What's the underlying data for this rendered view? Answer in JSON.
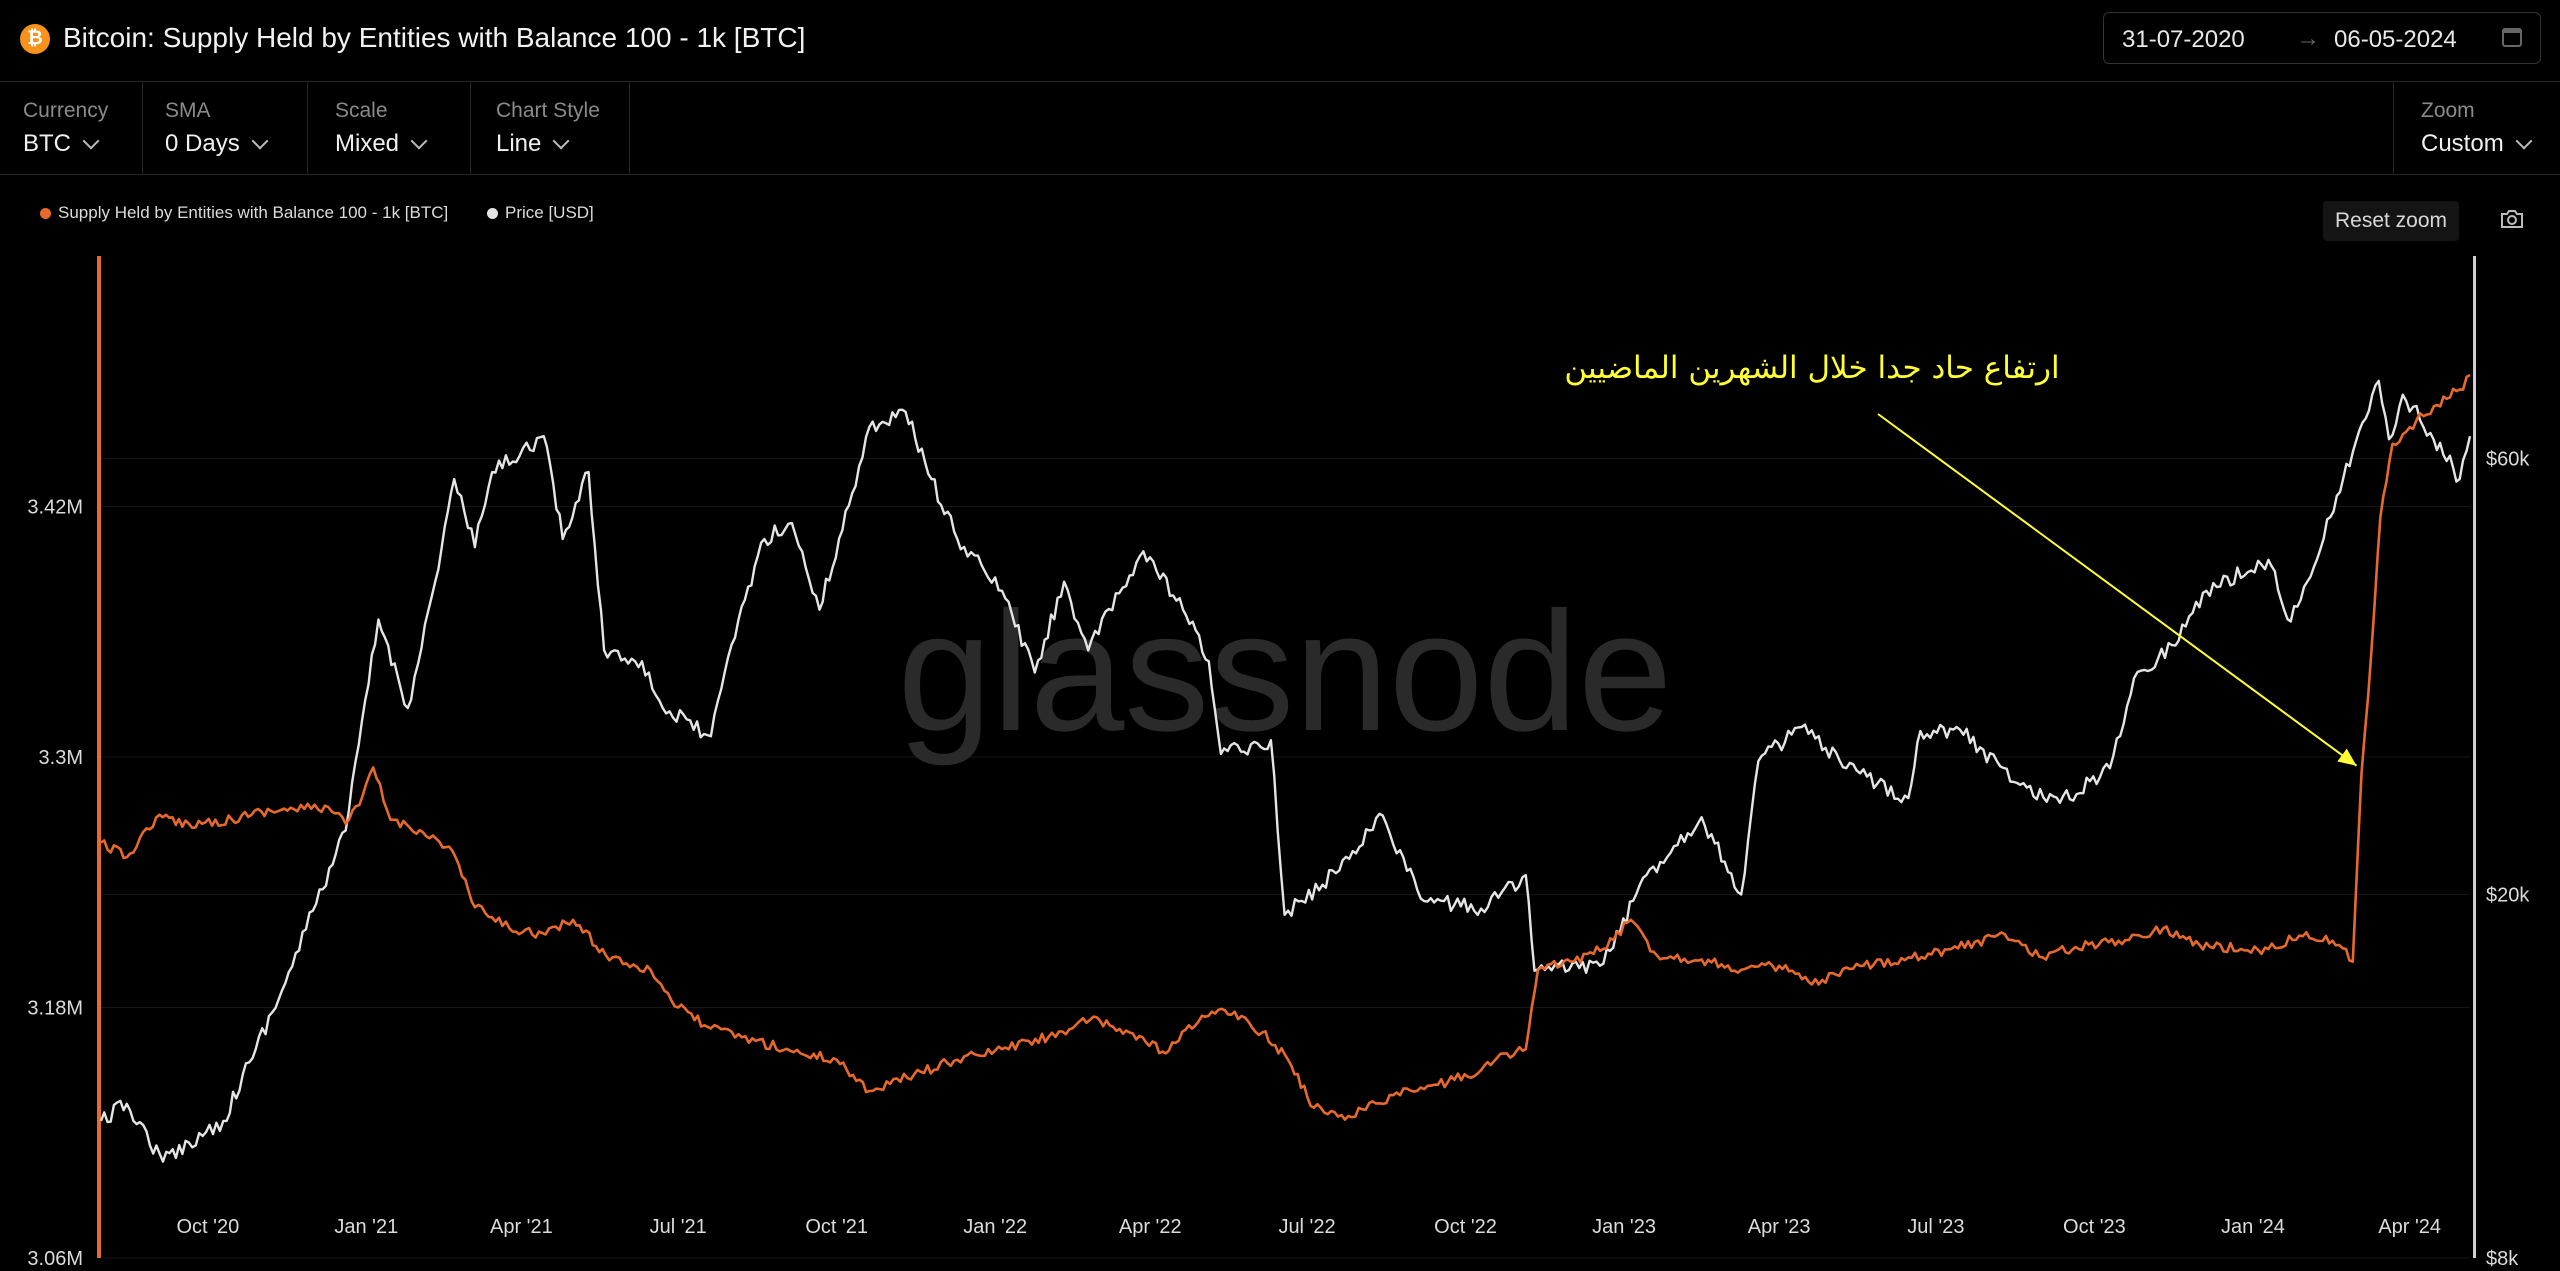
{
  "header": {
    "title": "Bitcoin: Supply Held by Entities with Balance 100 - 1k [BTC]",
    "date_start": "31-07-2020",
    "date_arrow": "→",
    "date_end": "06-05-2024"
  },
  "controls": {
    "currency": {
      "label": "Currency",
      "value": "BTC"
    },
    "sma": {
      "label": "SMA",
      "value": "0 Days"
    },
    "scale": {
      "label": "Scale",
      "value": "Mixed"
    },
    "chart_style": {
      "label": "Chart Style",
      "value": "Line"
    },
    "zoom": {
      "label": "Zoom",
      "value": "Custom"
    }
  },
  "toolbar": {
    "reset_zoom": "Reset zoom"
  },
  "watermark": "glassnode",
  "colors": {
    "supply": "#e8692c",
    "price": "#e5e5e5",
    "annotation": "#ffff33",
    "background": "#000000"
  },
  "chart_data": {
    "type": "line",
    "title": "Bitcoin: Supply Held by Entities with Balance 100 - 1k [BTC]",
    "x_ticks": [
      "Oct '20",
      "Jan '21",
      "Apr '21",
      "Jul '21",
      "Oct '21",
      "Jan '22",
      "Apr '22",
      "Jul '22",
      "Oct '22",
      "Jan '23",
      "Apr '23",
      "Jul '23",
      "Oct '23",
      "Jan '24",
      "Apr '24"
    ],
    "x_tick_dates": [
      "2020-10-01",
      "2021-01-01",
      "2021-04-01",
      "2021-07-01",
      "2021-10-01",
      "2022-01-01",
      "2022-04-01",
      "2022-07-01",
      "2022-10-01",
      "2023-01-01",
      "2023-04-01",
      "2023-07-01",
      "2023-10-01",
      "2024-01-01",
      "2024-04-01"
    ],
    "x_range": [
      "2020-07-31",
      "2024-05-06"
    ],
    "y_left": {
      "ticks": [
        "3.06M",
        "3.18M",
        "3.3M",
        "3.42M"
      ],
      "tick_values": [
        3.06,
        3.18,
        3.3,
        3.42
      ],
      "range": [
        3.06,
        3.54
      ],
      "unit": "M BTC"
    },
    "y_right": {
      "ticks": [
        "$8k",
        "$20k",
        "$60k"
      ],
      "tick_values": [
        8000,
        20000,
        60000
      ],
      "scale": "log",
      "range": [
        8000,
        100000
      ]
    },
    "legend": {
      "position": "top-left"
    },
    "series": [
      {
        "name": "Supply Held by Entities with Balance 100 - 1k [BTC]",
        "axis": "left",
        "points": [
          [
            "2020-07-31",
            3.259
          ],
          [
            "2020-08-15",
            3.252
          ],
          [
            "2020-09-01",
            3.271
          ],
          [
            "2020-09-20",
            3.268
          ],
          [
            "2020-10-15",
            3.27
          ],
          [
            "2020-11-01",
            3.274
          ],
          [
            "2020-11-20",
            3.275
          ],
          [
            "2020-12-10",
            3.276
          ],
          [
            "2020-12-20",
            3.268
          ],
          [
            "2020-12-28",
            3.277
          ],
          [
            "2021-01-05",
            3.295
          ],
          [
            "2021-01-15",
            3.27
          ],
          [
            "2021-02-01",
            3.265
          ],
          [
            "2021-02-20",
            3.255
          ],
          [
            "2021-03-05",
            3.228
          ],
          [
            "2021-03-25",
            3.218
          ],
          [
            "2021-04-15",
            3.215
          ],
          [
            "2021-05-01",
            3.222
          ],
          [
            "2021-05-20",
            3.205
          ],
          [
            "2021-06-15",
            3.198
          ],
          [
            "2021-07-01",
            3.18
          ],
          [
            "2021-07-20",
            3.17
          ],
          [
            "2021-08-15",
            3.164
          ],
          [
            "2021-09-10",
            3.158
          ],
          [
            "2021-10-01",
            3.155
          ],
          [
            "2021-10-20",
            3.14
          ],
          [
            "2021-11-15",
            3.148
          ],
          [
            "2021-12-10",
            3.155
          ],
          [
            "2022-01-05",
            3.16
          ],
          [
            "2022-02-01",
            3.166
          ],
          [
            "2022-02-25",
            3.174
          ],
          [
            "2022-03-20",
            3.168
          ],
          [
            "2022-04-10",
            3.158
          ],
          [
            "2022-05-01",
            3.176
          ],
          [
            "2022-05-20",
            3.178
          ],
          [
            "2022-06-05",
            3.168
          ],
          [
            "2022-06-20",
            3.155
          ],
          [
            "2022-07-05",
            3.132
          ],
          [
            "2022-07-25",
            3.128
          ],
          [
            "2022-08-20",
            3.138
          ],
          [
            "2022-09-15",
            3.143
          ],
          [
            "2022-10-10",
            3.15
          ],
          [
            "2022-10-25",
            3.158
          ],
          [
            "2022-11-05",
            3.16
          ],
          [
            "2022-11-12",
            3.198
          ],
          [
            "2022-12-01",
            3.202
          ],
          [
            "2022-12-20",
            3.208
          ],
          [
            "2023-01-05",
            3.222
          ],
          [
            "2023-01-20",
            3.205
          ],
          [
            "2023-02-15",
            3.203
          ],
          [
            "2023-03-10",
            3.198
          ],
          [
            "2023-04-01",
            3.2
          ],
          [
            "2023-04-20",
            3.191
          ],
          [
            "2023-05-20",
            3.2
          ],
          [
            "2023-06-15",
            3.204
          ],
          [
            "2023-07-10",
            3.208
          ],
          [
            "2023-08-10",
            3.215
          ],
          [
            "2023-09-01",
            3.204
          ],
          [
            "2023-09-20",
            3.209
          ],
          [
            "2023-10-15",
            3.212
          ],
          [
            "2023-11-10",
            3.218
          ],
          [
            "2023-12-01",
            3.21
          ],
          [
            "2023-12-25",
            3.208
          ],
          [
            "2024-01-10",
            3.208
          ],
          [
            "2024-02-01",
            3.216
          ],
          [
            "2024-02-20",
            3.21
          ],
          [
            "2024-02-28",
            3.202
          ],
          [
            "2024-03-04",
            3.292
          ],
          [
            "2024-03-08",
            3.33
          ],
          [
            "2024-03-15",
            3.415
          ],
          [
            "2024-03-22",
            3.45
          ],
          [
            "2024-04-01",
            3.458
          ],
          [
            "2024-04-15",
            3.468
          ],
          [
            "2024-04-30",
            3.476
          ],
          [
            "2024-05-06",
            3.483
          ]
        ]
      },
      {
        "name": "Price [USD]",
        "axis": "right",
        "points": [
          [
            "2020-07-31",
            11300
          ],
          [
            "2020-08-15",
            11800
          ],
          [
            "2020-09-05",
            10200
          ],
          [
            "2020-09-20",
            10700
          ],
          [
            "2020-10-10",
            11300
          ],
          [
            "2020-10-25",
            13100
          ],
          [
            "2020-11-15",
            16000
          ],
          [
            "2020-12-01",
            19200
          ],
          [
            "2020-12-20",
            23500
          ],
          [
            "2021-01-08",
            40000
          ],
          [
            "2021-01-25",
            32000
          ],
          [
            "2021-02-10",
            44000
          ],
          [
            "2021-02-21",
            57000
          ],
          [
            "2021-03-05",
            48000
          ],
          [
            "2021-03-15",
            58000
          ],
          [
            "2021-04-14",
            63500
          ],
          [
            "2021-04-25",
            49000
          ],
          [
            "2021-05-10",
            58000
          ],
          [
            "2021-05-19",
            37000
          ],
          [
            "2021-06-10",
            36000
          ],
          [
            "2021-06-22",
            32000
          ],
          [
            "2021-07-20",
            29800
          ],
          [
            "2021-08-05",
            40000
          ],
          [
            "2021-08-20",
            49000
          ],
          [
            "2021-09-05",
            51000
          ],
          [
            "2021-09-21",
            41000
          ],
          [
            "2021-10-10",
            55000
          ],
          [
            "2021-10-20",
            65000
          ],
          [
            "2021-11-10",
            67500
          ],
          [
            "2021-11-25",
            57000
          ],
          [
            "2021-12-10",
            49000
          ],
          [
            "2022-01-05",
            43000
          ],
          [
            "2022-01-24",
            35000
          ],
          [
            "2022-02-10",
            44000
          ],
          [
            "2022-02-24",
            37000
          ],
          [
            "2022-03-28",
            47500
          ],
          [
            "2022-04-20",
            41000
          ],
          [
            "2022-05-05",
            36000
          ],
          [
            "2022-05-12",
            28500
          ],
          [
            "2022-06-10",
            29500
          ],
          [
            "2022-06-18",
            19000
          ],
          [
            "2022-07-10",
            20500
          ],
          [
            "2022-08-14",
            24400
          ],
          [
            "2022-09-05",
            19800
          ],
          [
            "2022-10-10",
            19300
          ],
          [
            "2022-11-05",
            21000
          ],
          [
            "2022-11-10",
            16500
          ],
          [
            "2022-12-20",
            16800
          ],
          [
            "2023-01-14",
            21000
          ],
          [
            "2023-02-15",
            24300
          ],
          [
            "2023-03-10",
            20000
          ],
          [
            "2023-03-20",
            28000
          ],
          [
            "2023-04-14",
            30500
          ],
          [
            "2023-05-10",
            27500
          ],
          [
            "2023-06-15",
            25500
          ],
          [
            "2023-06-22",
            30200
          ],
          [
            "2023-07-15",
            30300
          ],
          [
            "2023-08-17",
            26500
          ],
          [
            "2023-09-11",
            25200
          ],
          [
            "2023-10-10",
            27500
          ],
          [
            "2023-10-24",
            34500
          ],
          [
            "2023-11-15",
            37500
          ],
          [
            "2023-12-05",
            43000
          ],
          [
            "2024-01-10",
            46500
          ],
          [
            "2024-01-23",
            39800
          ],
          [
            "2024-02-15",
            51800
          ],
          [
            "2024-02-28",
            61000
          ],
          [
            "2024-03-14",
            73000
          ],
          [
            "2024-03-20",
            63000
          ],
          [
            "2024-03-28",
            70500
          ],
          [
            "2024-04-13",
            64000
          ],
          [
            "2024-04-30",
            57000
          ],
          [
            "2024-05-06",
            63500
          ]
        ]
      }
    ],
    "annotations": [
      {
        "text": "ارتفاع حاد جدا خلال الشهرين الماضيين",
        "points_to": "2024-03-04"
      }
    ]
  }
}
